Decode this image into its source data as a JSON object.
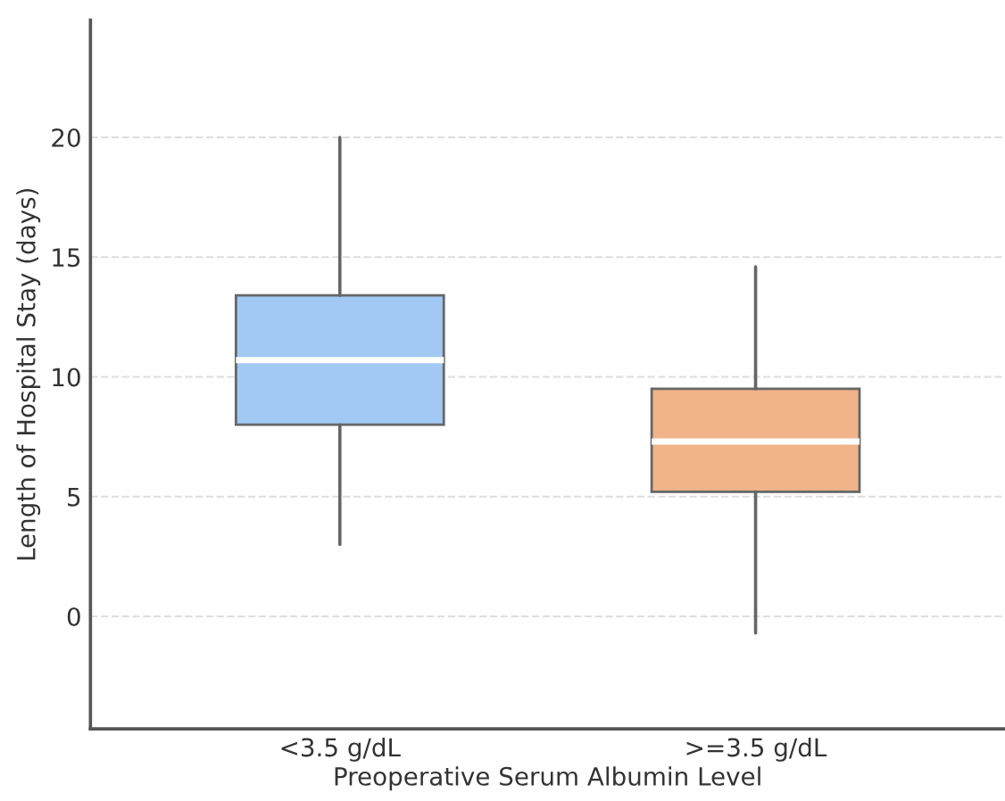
{
  "chart_data": {
    "type": "box",
    "xlabel": "Preoperative Serum Albumin Level",
    "ylabel": "Length of Hospital Stay (days)",
    "categories": [
      "<3.5 g/dL",
      ">=3.5 g/dL"
    ],
    "boxes": [
      {
        "low": 3.0,
        "q1": 8.0,
        "median": 10.7,
        "q3": 13.4,
        "high": 20.0
      },
      {
        "low": -0.7,
        "q1": 5.2,
        "median": 7.3,
        "q3": 9.5,
        "high": 14.6
      }
    ],
    "colors": [
      "#a1c9f4",
      "#f1b38a"
    ],
    "ylim": [
      -4.7,
      24.9
    ],
    "yticks": [
      0,
      5,
      10,
      15,
      20
    ],
    "grid": "y"
  }
}
